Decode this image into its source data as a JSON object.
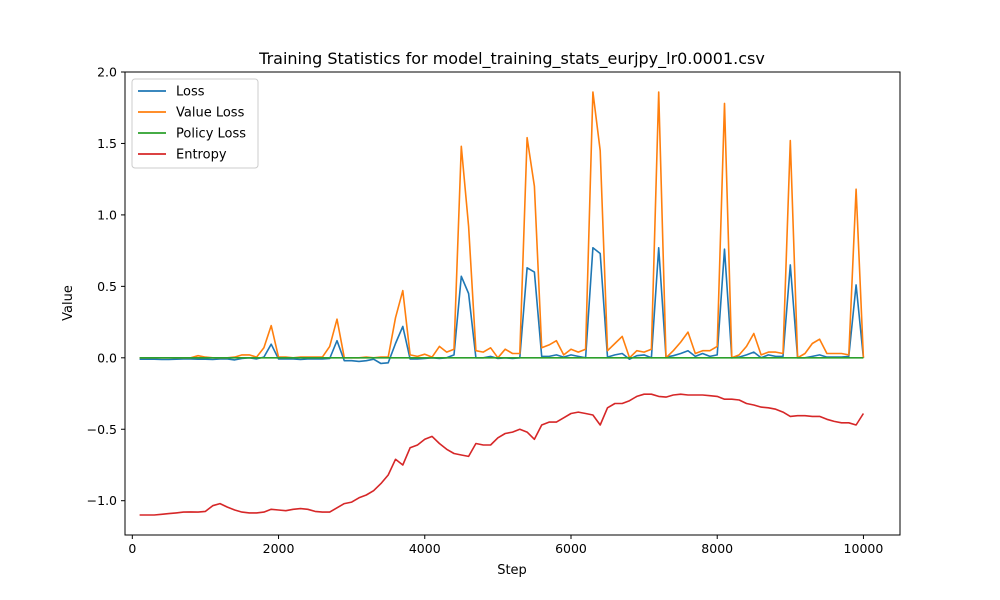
{
  "chart_data": {
    "type": "line",
    "title": "Training Statistics for model_training_stats_eurjpy_lr0.0001.csv",
    "xlabel": "Step",
    "ylabel": "Value",
    "xlim": [
      -100,
      10500
    ],
    "ylim": [
      -1.24,
      2.0
    ],
    "xticks": [
      0,
      2000,
      4000,
      6000,
      8000,
      10000
    ],
    "yticks": [
      -1.0,
      -0.5,
      0.0,
      0.5,
      1.0,
      1.5,
      2.0
    ],
    "xtick_labels": [
      "0",
      "2000",
      "4000",
      "6000",
      "8000",
      "10000"
    ],
    "ytick_labels": [
      "−1.0",
      "−0.5",
      "0.0",
      "0.5",
      "1.0",
      "1.5",
      "2.0"
    ],
    "grid": false,
    "legend_position": "top-left",
    "x": [
      100,
      200,
      300,
      400,
      500,
      600,
      700,
      800,
      900,
      1000,
      1100,
      1200,
      1300,
      1400,
      1500,
      1600,
      1700,
      1800,
      1900,
      2000,
      2100,
      2200,
      2300,
      2400,
      2500,
      2600,
      2700,
      2800,
      2900,
      3000,
      3100,
      3200,
      3300,
      3400,
      3500,
      3600,
      3700,
      3800,
      3900,
      4000,
      4100,
      4200,
      4300,
      4400,
      4500,
      4600,
      4700,
      4800,
      4900,
      5000,
      5100,
      5200,
      5300,
      5400,
      5500,
      5600,
      5700,
      5800,
      5900,
      6000,
      6100,
      6200,
      6300,
      6400,
      6500,
      6600,
      6700,
      6800,
      6900,
      7000,
      7100,
      7200,
      7300,
      7400,
      7500,
      7600,
      7700,
      7800,
      7900,
      8000,
      8100,
      8200,
      8300,
      8400,
      8500,
      8600,
      8700,
      8800,
      8900,
      9000,
      9100,
      9200,
      9300,
      9400,
      9500,
      9600,
      9700,
      9800,
      9900,
      10000
    ],
    "series": [
      {
        "name": "Loss",
        "color": "#1f77b4",
        "values": [
          -0.01,
          -0.01,
          -0.01,
          -0.012,
          -0.012,
          -0.01,
          -0.008,
          -0.008,
          -0.01,
          -0.01,
          -0.012,
          -0.008,
          -0.008,
          -0.015,
          -0.005,
          0.0,
          -0.008,
          0.005,
          0.095,
          -0.008,
          -0.008,
          -0.008,
          -0.012,
          -0.008,
          -0.008,
          -0.008,
          -0.005,
          0.12,
          -0.02,
          -0.02,
          -0.025,
          -0.02,
          -0.01,
          -0.04,
          -0.035,
          0.1,
          0.22,
          -0.008,
          -0.008,
          -0.005,
          0.0,
          -0.005,
          0.0,
          0.02,
          0.57,
          0.45,
          0.0,
          0.0,
          0.01,
          -0.005,
          0.0,
          -0.005,
          0.0,
          0.63,
          0.6,
          0.01,
          0.01,
          0.02,
          0.005,
          0.02,
          0.01,
          0.0,
          0.77,
          0.73,
          0.005,
          0.02,
          0.03,
          -0.01,
          0.015,
          0.02,
          0.0,
          0.77,
          0.005,
          0.015,
          0.03,
          0.05,
          0.01,
          0.03,
          0.01,
          0.02,
          0.76,
          0.0,
          0.005,
          0.02,
          0.04,
          0.0,
          0.02,
          0.01,
          0.01,
          0.65,
          0.0,
          0.0,
          0.01,
          0.02,
          0.005,
          0.005,
          0.005,
          0.01,
          0.51,
          0.0
        ]
      },
      {
        "name": "Value Loss",
        "color": "#ff7f0e",
        "values": [
          0.0,
          0.0,
          0.0,
          0.0,
          0.0,
          0.0,
          0.0,
          0.0,
          0.015,
          0.005,
          0.0,
          0.0,
          0.0,
          0.005,
          0.02,
          0.02,
          0.005,
          0.07,
          0.225,
          0.005,
          0.005,
          0.0,
          0.005,
          0.005,
          0.005,
          0.005,
          0.08,
          0.27,
          0.0,
          0.0,
          0.0,
          0.005,
          0.0,
          0.005,
          0.005,
          0.28,
          0.47,
          0.02,
          0.01,
          0.025,
          0.005,
          0.08,
          0.04,
          0.06,
          1.48,
          0.92,
          0.05,
          0.04,
          0.07,
          0.0,
          0.06,
          0.03,
          0.03,
          1.54,
          1.2,
          0.07,
          0.09,
          0.12,
          0.02,
          0.06,
          0.04,
          0.06,
          1.86,
          1.45,
          0.05,
          0.1,
          0.15,
          0.0,
          0.05,
          0.04,
          0.06,
          1.86,
          0.0,
          0.05,
          0.11,
          0.18,
          0.03,
          0.05,
          0.05,
          0.08,
          1.78,
          0.0,
          0.02,
          0.08,
          0.17,
          0.02,
          0.04,
          0.04,
          0.03,
          1.52,
          0.0,
          0.03,
          0.1,
          0.13,
          0.03,
          0.03,
          0.03,
          0.02,
          1.18,
          0.0
        ]
      },
      {
        "name": "Policy Loss",
        "color": "#2ca02c",
        "values": [
          0.0,
          0.0,
          0.0,
          0.0,
          0.0,
          0.0,
          0.0,
          0.0,
          0.0,
          0.0,
          0.0,
          0.0,
          0.0,
          0.0,
          0.0,
          0.0,
          0.0,
          0.0,
          0.0,
          0.0,
          0.0,
          0.0,
          0.0,
          0.0,
          0.0,
          0.0,
          0.0,
          0.0,
          0.0,
          0.0,
          0.0,
          0.0,
          0.0,
          0.0,
          0.0,
          0.0,
          0.0,
          0.0,
          0.0,
          0.0,
          0.0,
          0.0,
          0.0,
          0.0,
          0.0,
          0.0,
          0.0,
          0.0,
          0.0,
          0.0,
          0.0,
          0.0,
          0.0,
          0.0,
          0.0,
          0.0,
          0.0,
          0.0,
          0.0,
          0.0,
          0.0,
          0.0,
          0.0,
          0.0,
          0.0,
          0.0,
          0.0,
          0.0,
          0.0,
          0.0,
          0.0,
          0.0,
          0.0,
          0.0,
          0.0,
          0.0,
          0.0,
          0.0,
          0.0,
          0.0,
          0.0,
          0.0,
          0.0,
          0.0,
          0.0,
          0.0,
          0.0,
          0.0,
          0.0,
          0.0,
          0.0,
          0.0,
          0.0,
          0.0,
          0.0,
          0.0,
          0.0,
          0.0,
          0.0,
          0.0
        ]
      },
      {
        "name": "Entropy",
        "color": "#d62728",
        "values": [
          -1.1,
          -1.1,
          -1.1,
          -1.095,
          -1.09,
          -1.085,
          -1.08,
          -1.078,
          -1.08,
          -1.075,
          -1.035,
          -1.02,
          -1.045,
          -1.065,
          -1.08,
          -1.085,
          -1.085,
          -1.08,
          -1.06,
          -1.065,
          -1.07,
          -1.06,
          -1.055,
          -1.06,
          -1.075,
          -1.08,
          -1.08,
          -1.05,
          -1.02,
          -1.01,
          -0.98,
          -0.96,
          -0.93,
          -0.88,
          -0.82,
          -0.71,
          -0.75,
          -0.63,
          -0.61,
          -0.57,
          -0.55,
          -0.6,
          -0.64,
          -0.67,
          -0.68,
          -0.69,
          -0.6,
          -0.61,
          -0.61,
          -0.56,
          -0.53,
          -0.52,
          -0.5,
          -0.52,
          -0.57,
          -0.47,
          -0.45,
          -0.45,
          -0.42,
          -0.39,
          -0.38,
          -0.39,
          -0.4,
          -0.47,
          -0.35,
          -0.32,
          -0.32,
          -0.3,
          -0.27,
          -0.255,
          -0.255,
          -0.27,
          -0.275,
          -0.26,
          -0.255,
          -0.26,
          -0.26,
          -0.26,
          -0.265,
          -0.27,
          -0.29,
          -0.29,
          -0.295,
          -0.32,
          -0.33,
          -0.345,
          -0.35,
          -0.36,
          -0.38,
          -0.41,
          -0.405,
          -0.405,
          -0.41,
          -0.41,
          -0.43,
          -0.445,
          -0.455,
          -0.455,
          -0.47,
          -0.39
        ]
      }
    ]
  }
}
